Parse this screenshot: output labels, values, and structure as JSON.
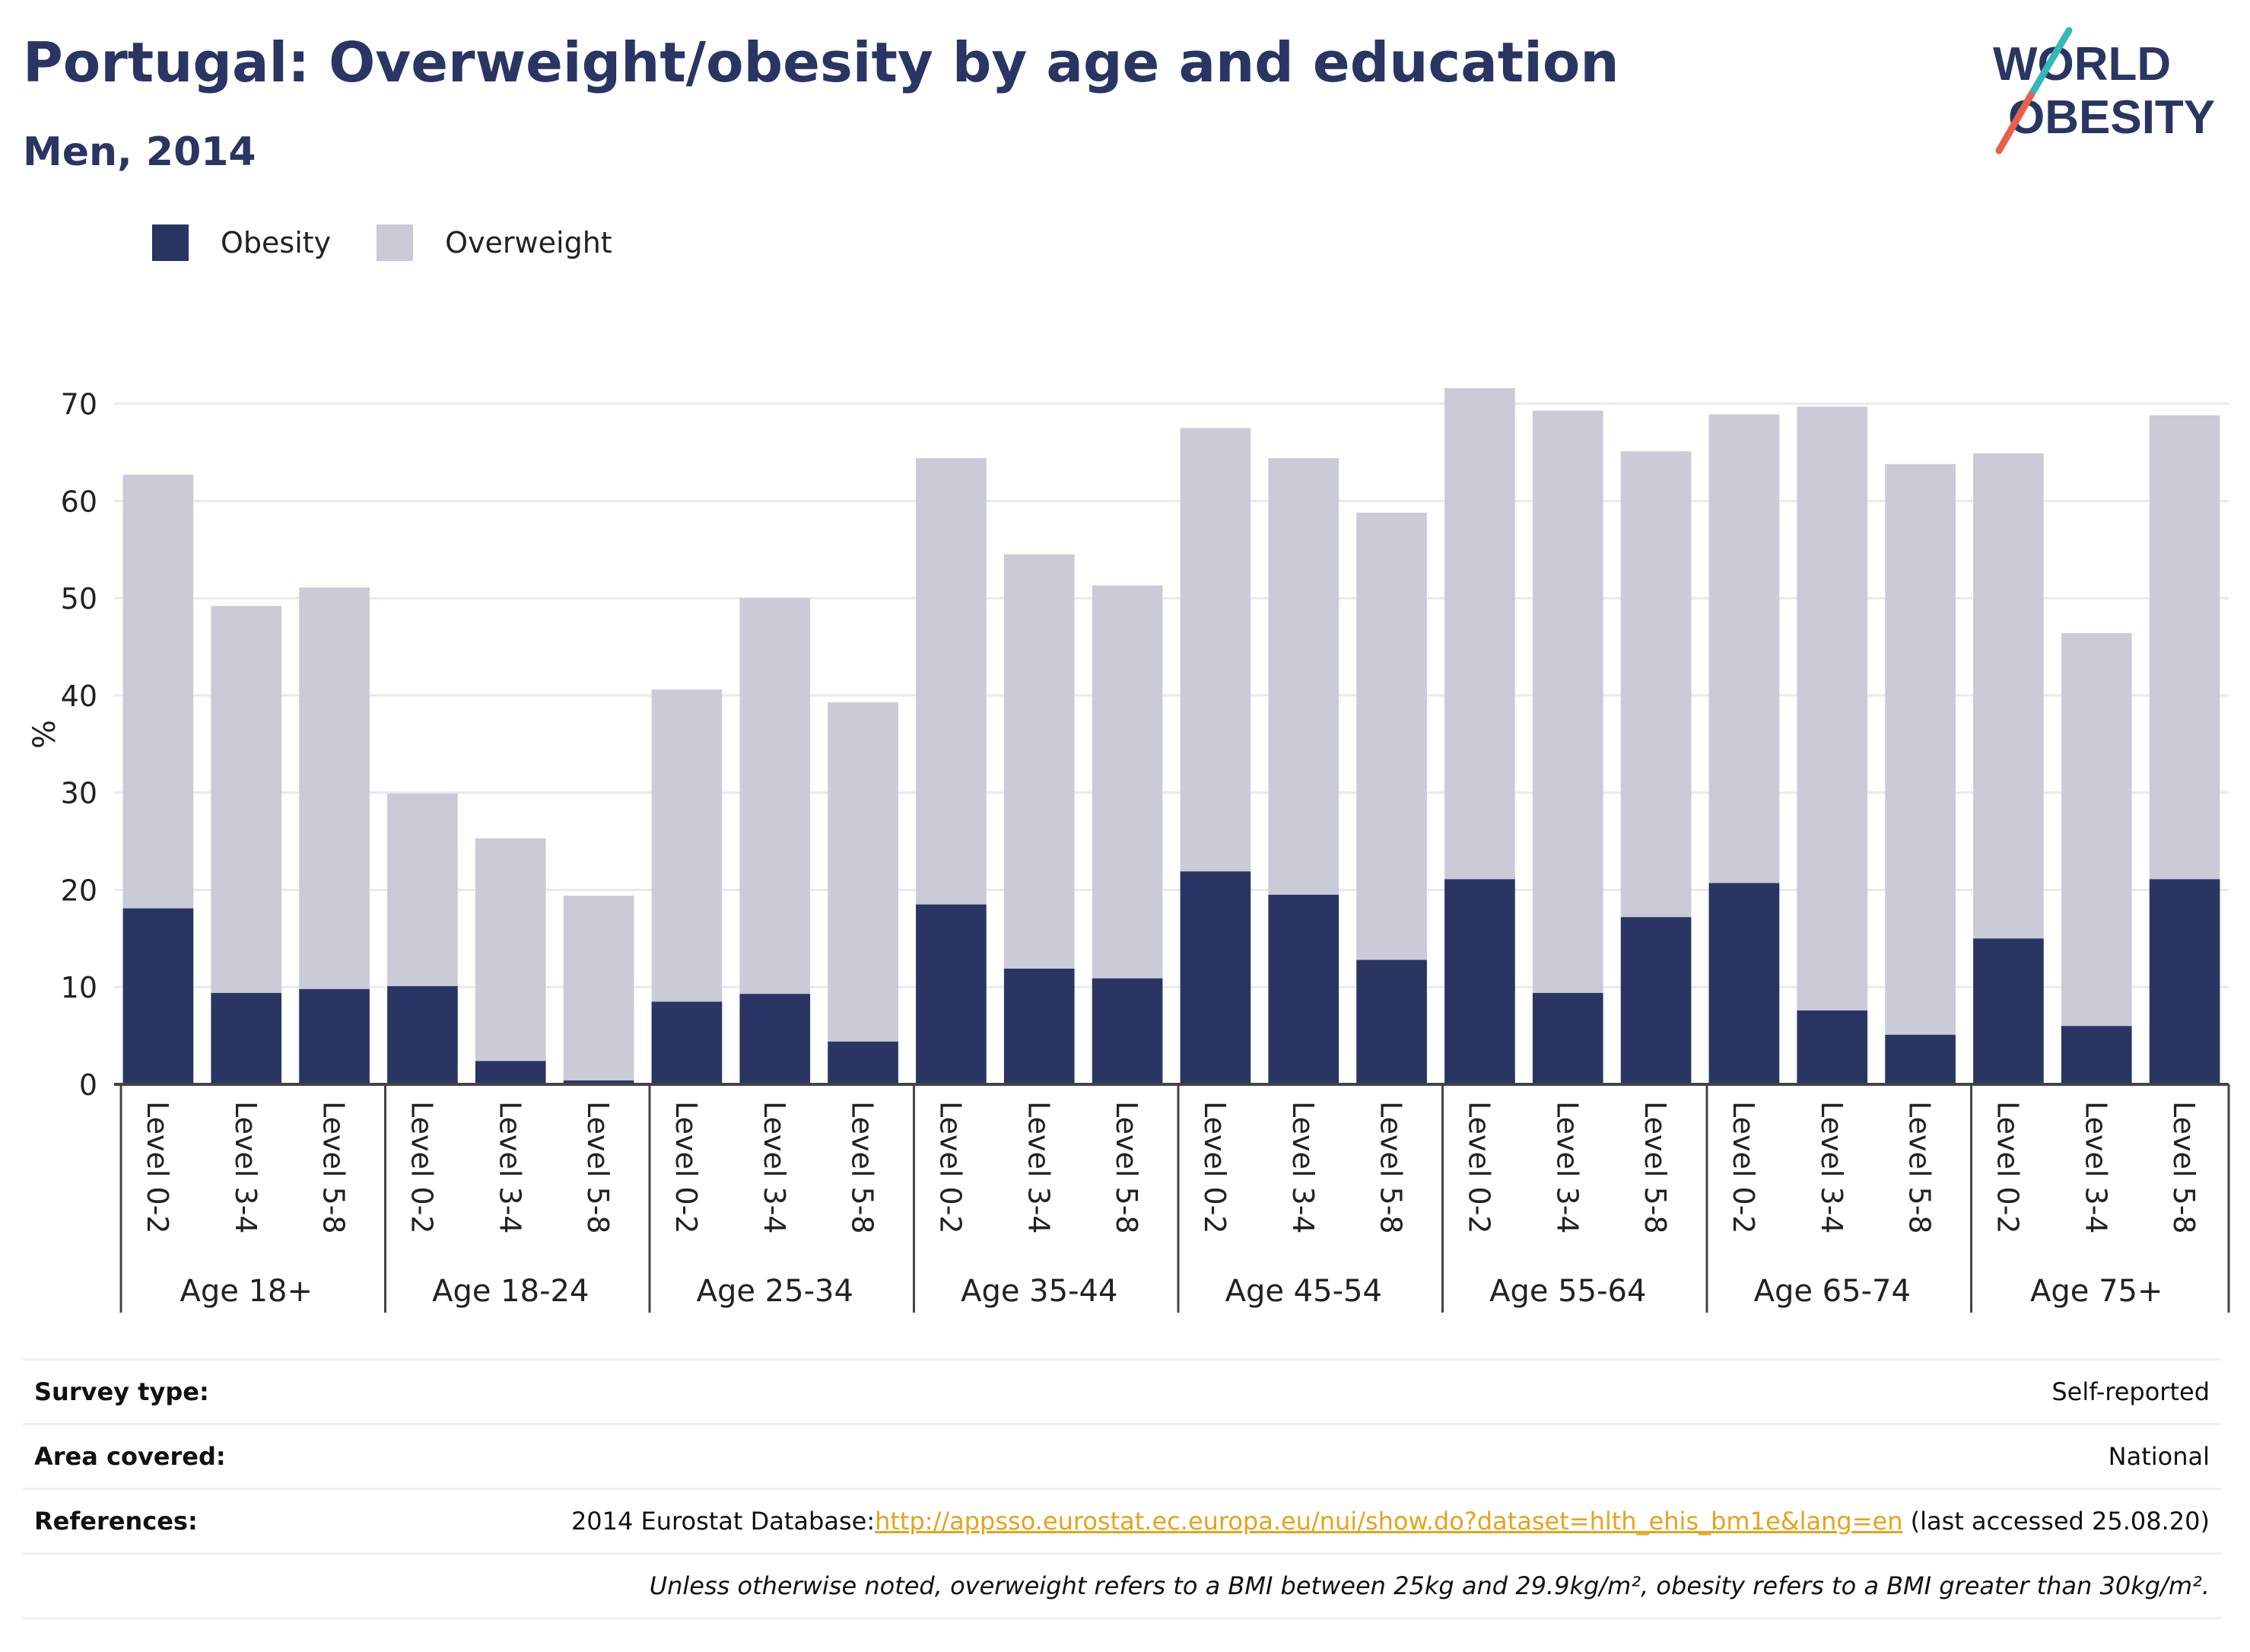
{
  "header": {
    "title": "Portugal: Overweight/obesity by age and education",
    "subtitle": "Men, 2014"
  },
  "logo": {
    "line1": "WORLD",
    "line2": "OBESITY"
  },
  "colors": {
    "obesity": "#2a3563",
    "overweight": "#c9cbd7",
    "link": "#e8a21a",
    "grid": "#e8eaf0"
  },
  "legend": {
    "obesity_label": "Obesity",
    "overweight_label": "Overweight"
  },
  "chart_data": {
    "type": "bar",
    "stacked": true,
    "ylabel": "%",
    "xlabel": "",
    "ylim": [
      0,
      72
    ],
    "yticks": [
      0,
      10,
      20,
      30,
      40,
      50,
      60,
      70
    ],
    "groups": [
      "Age 18+",
      "Age 18-24",
      "Age 25-34",
      "Age 35-44",
      "Age 45-54",
      "Age 55-64",
      "Age 65-74",
      "Age 75+"
    ],
    "categories": [
      "Level 0-2",
      "Level 3-4",
      "Level 5-8"
    ],
    "series": [
      {
        "name": "Obesity",
        "values": [
          [
            18.1,
            9.4,
            9.8
          ],
          [
            10.1,
            2.4,
            0.4
          ],
          [
            8.5,
            9.3,
            4.4
          ],
          [
            18.5,
            11.9,
            10.9
          ],
          [
            21.9,
            19.5,
            12.8
          ],
          [
            21.1,
            9.4,
            17.2
          ],
          [
            20.7,
            7.6,
            5.1
          ],
          [
            15.0,
            6.0,
            21.1
          ]
        ]
      },
      {
        "name": "Overweight",
        "values": [
          [
            44.6,
            39.8,
            41.3
          ],
          [
            19.8,
            22.9,
            19.0
          ],
          [
            32.1,
            40.7,
            34.9
          ],
          [
            45.9,
            42.6,
            40.4
          ],
          [
            45.6,
            44.9,
            46.0
          ],
          [
            50.5,
            59.9,
            47.9
          ],
          [
            48.2,
            62.1,
            58.7
          ],
          [
            49.9,
            40.4,
            47.7
          ]
        ]
      }
    ],
    "legend_position": "top-left",
    "grid": true
  },
  "info_table": {
    "survey_type_label": "Survey type:",
    "survey_type_value": "Self-reported",
    "area_label": "Area covered:",
    "area_value": "National",
    "references_label": "References:",
    "references_prefix": "2014 Eurostat Database:",
    "references_link": "http://appsso.eurostat.ec.europa.eu/nui/show.do?dataset=hlth_ehis_bm1e&lang=en",
    "references_suffix": " (last accessed 25.08.20)",
    "note": "Unless otherwise noted, overweight refers to a BMI between 25kg and 29.9kg/m², obesity refers to a BMI greater than 30kg/m²."
  }
}
